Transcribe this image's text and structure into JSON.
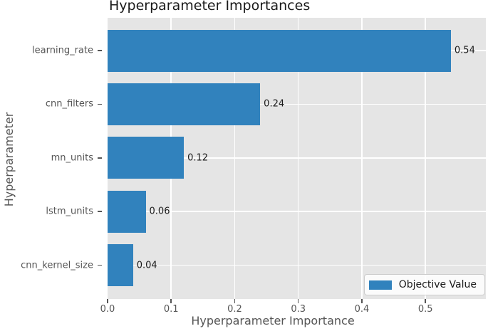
{
  "chart_data": {
    "type": "bar",
    "orientation": "horizontal",
    "title": "Hyperparameter Importances",
    "xlabel": "Hyperparameter Importance",
    "ylabel": "Hyperparameter",
    "categories": [
      "learning_rate",
      "cnn_filters",
      "mn_units",
      "lstm_units",
      "cnn_kernel_size"
    ],
    "values": [
      0.54,
      0.24,
      0.12,
      0.06,
      0.04
    ],
    "value_labels": [
      "0.54",
      "0.24",
      "0.12",
      "0.06",
      "0.04"
    ],
    "x_ticks": [
      0.0,
      0.1,
      0.2,
      0.3,
      0.4,
      0.5
    ],
    "x_tick_labels": [
      "0.0",
      "0.1",
      "0.2",
      "0.3",
      "0.4",
      "0.5"
    ],
    "xlim": [
      0,
      0.595
    ],
    "grid": true,
    "legend": {
      "label": "Objective Value",
      "position": "lower right"
    },
    "colors": {
      "bar": "#3182bd",
      "plot_background": "#e5e5e5",
      "gridline": "#ffffff",
      "tick_color": "#555555",
      "axis_label_text": "#555555",
      "title_text": "#1a1a1a",
      "value_text": "#1a1a1a",
      "legend_border": "#cccccc",
      "legend_background": "#fafafa"
    }
  }
}
